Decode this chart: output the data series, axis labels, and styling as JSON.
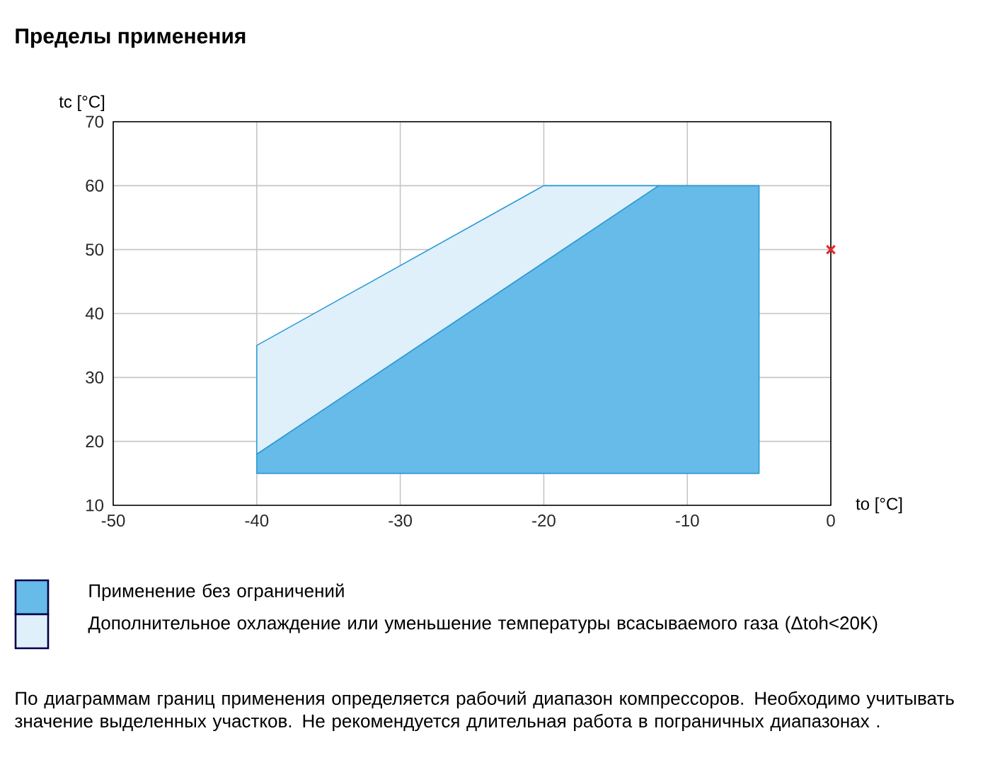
{
  "chart_data": {
    "type": "area",
    "title": "Пределы применения",
    "xlabel": "to [°C]",
    "ylabel": "tc [°C]",
    "xlim": [
      -50,
      0
    ],
    "ylim": [
      10,
      70
    ],
    "xticks": [
      -50,
      -40,
      -30,
      -20,
      -10,
      0
    ],
    "yticks": [
      10,
      20,
      30,
      40,
      50,
      60,
      70
    ],
    "grid": true,
    "legend": "bottom",
    "series": [
      {
        "name": "Применение без ограничений",
        "color": "#66bbe8",
        "x": [
          -40,
          -12,
          -5,
          -5,
          -40,
          -40
        ],
        "values": [
          18,
          60,
          60,
          15,
          15,
          18
        ]
      },
      {
        "name": "Дополнительное охлаждение или уменьшение температуры всасываемого газа (Δtoh<20K)",
        "color": "#dff0fb",
        "x": [
          -40,
          -20,
          -12,
          -40,
          -40
        ],
        "values": [
          35,
          60,
          60,
          18,
          35
        ]
      },
      {
        "type": "scatter",
        "color": "#e8262a",
        "marker": "cross",
        "x": [
          0
        ],
        "values": [
          50
        ]
      }
    ],
    "annotations": [
      "По диаграммам границ применения определяется рабочий диапазон компрессоров. Необходимо учитывать значение выделенных участков. Не рекомендуется длительная работа в пограничных диапазонах ."
    ]
  }
}
